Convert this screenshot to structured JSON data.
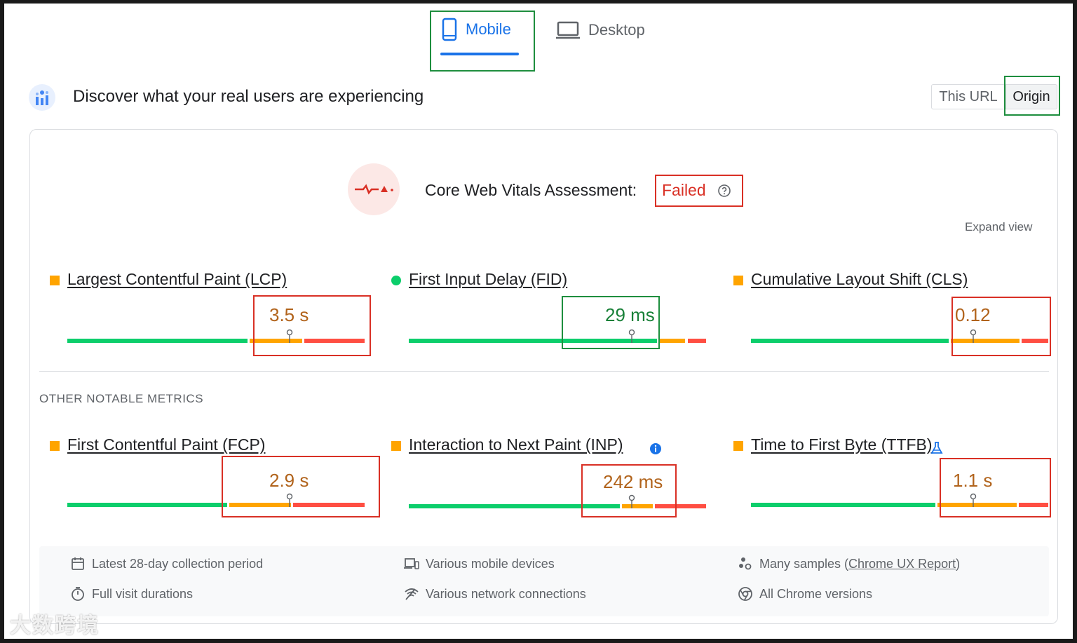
{
  "tabs": {
    "mobile": "Mobile",
    "desktop": "Desktop"
  },
  "header": {
    "title": "Discover what your real users are experiencing"
  },
  "toggle": {
    "this_url": "This URL",
    "origin": "Origin"
  },
  "assessment": {
    "title": "Core Web Vitals Assessment:",
    "status": "Failed"
  },
  "expand_view": "Expand view",
  "core_metrics": [
    {
      "name": "Largest Contentful Paint (LCP)",
      "value": "3.5 s",
      "rating": "needs-improvement"
    },
    {
      "name": "First Input Delay (FID)",
      "value": "29 ms",
      "rating": "good"
    },
    {
      "name": "Cumulative Layout Shift (CLS)",
      "value": "0.12",
      "rating": "needs-improvement"
    }
  ],
  "other_label": "OTHER NOTABLE METRICS",
  "other_metrics": [
    {
      "name": "First Contentful Paint (FCP)",
      "value": "2.9 s",
      "rating": "needs-improvement"
    },
    {
      "name": "Interaction to Next Paint (INP)",
      "value": "242 ms",
      "rating": "needs-improvement"
    },
    {
      "name": "Time to First Byte (TTFB)",
      "value": "1.1 s",
      "rating": "needs-improvement"
    }
  ],
  "footer": {
    "period": "Latest 28-day collection period",
    "devices": "Various mobile devices",
    "samples_prefix": "Many samples (",
    "samples_link": "Chrome UX Report",
    "samples_suffix": ")",
    "durations": "Full visit durations",
    "network": "Various network connections",
    "versions": "All Chrome versions"
  },
  "watermark": "大数跨境",
  "colors": {
    "good": "#0cce6b",
    "average": "#ffa400",
    "poor": "#ff4e42",
    "failed": "#d93025",
    "accent": "#1a73e8"
  },
  "icons": [
    "mobile-icon",
    "desktop-icon",
    "crux-icon",
    "failed-vitals-icon",
    "help-icon",
    "info-icon",
    "lab-flask-icon",
    "calendar-icon",
    "devices-icon",
    "samples-icon",
    "stopwatch-icon",
    "network-icon",
    "chrome-icon"
  ]
}
